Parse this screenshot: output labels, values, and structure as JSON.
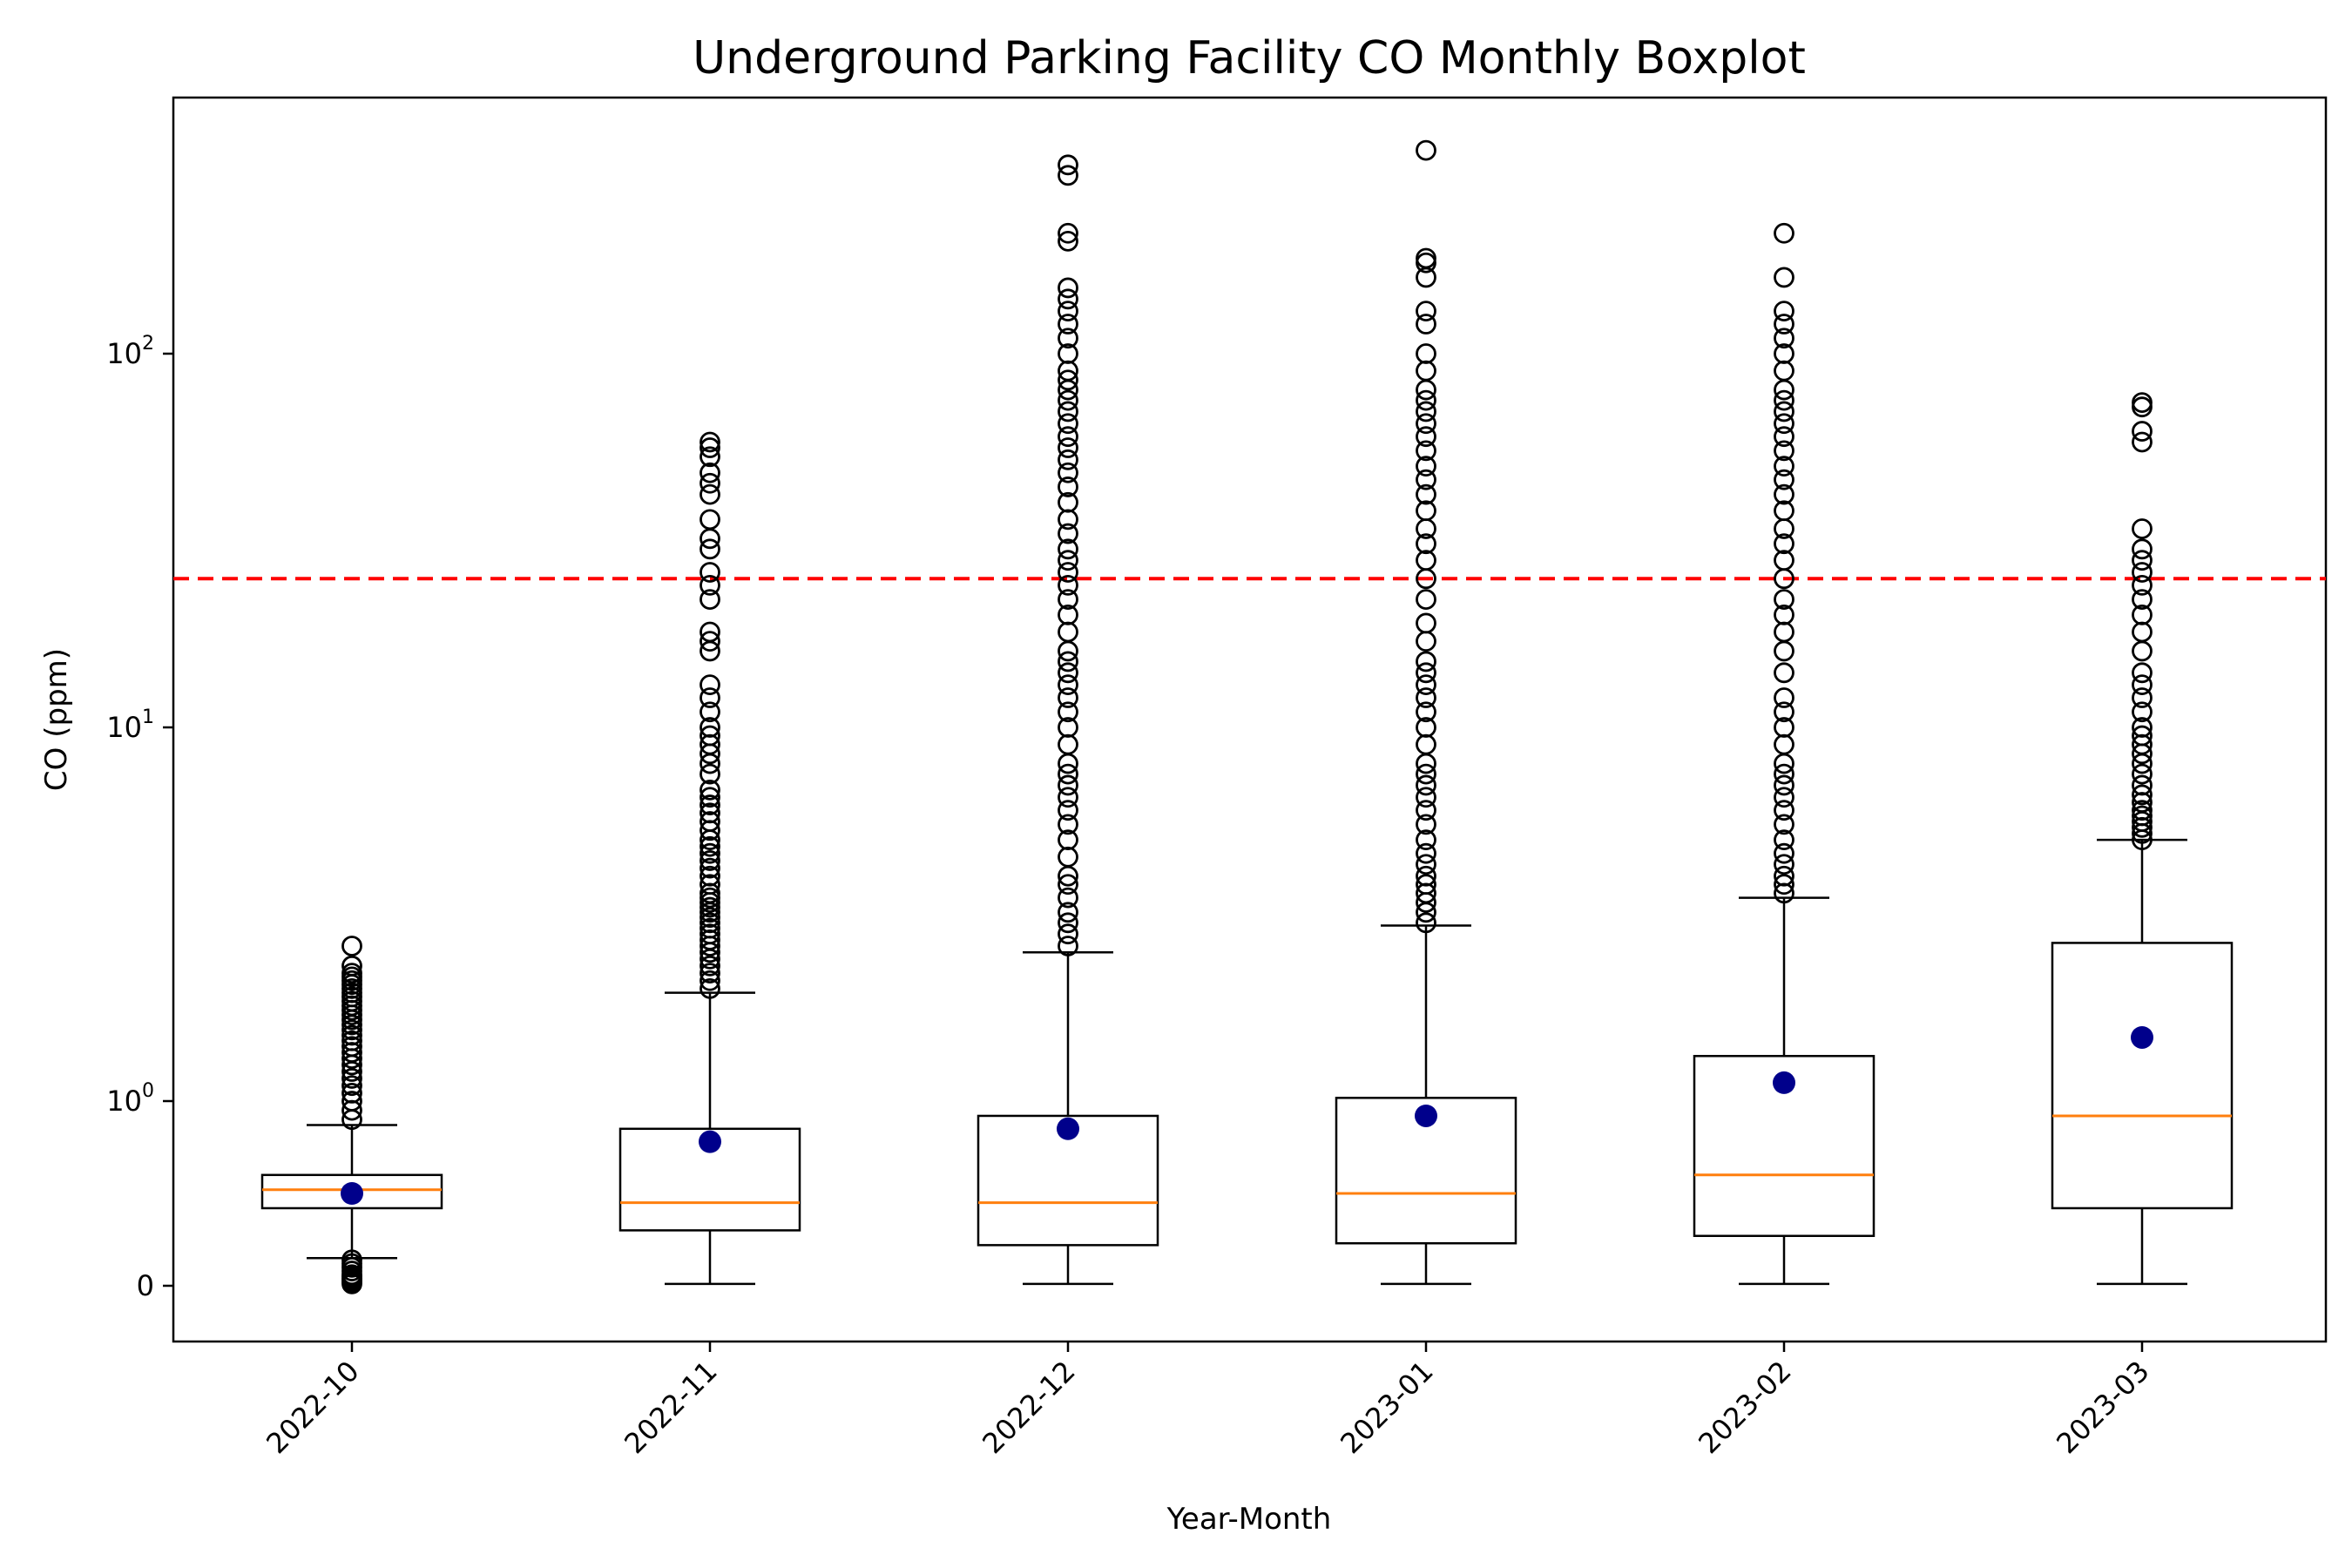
{
  "chart_data": {
    "type": "boxplot",
    "title": "Underground Parking Facility CO Monthly Boxplot",
    "xlabel": "Year-Month",
    "ylabel": "CO (ppm)",
    "yscale": "symlog",
    "symlog_linthresh": 1,
    "ylim": [
      -0.1,
      500
    ],
    "y_ticks": [
      {
        "value": 0,
        "base": "0",
        "exp": ""
      },
      {
        "value": 1,
        "base": "10",
        "exp": "0"
      },
      {
        "value": 10,
        "base": "10",
        "exp": "1"
      },
      {
        "value": 100,
        "base": "10",
        "exp": "2"
      }
    ],
    "threshold_line": {
      "value": 25,
      "color": "#ff0000",
      "style": "dashed"
    },
    "colors": {
      "box": "#000000",
      "median": "#ff7f0e",
      "mean": "#00008b",
      "flier": "#000000"
    },
    "categories": [
      "2022-10",
      "2022-11",
      "2022-12",
      "2023-01",
      "2023-02",
      "2023-03"
    ],
    "boxes": [
      {
        "category": "2022-10",
        "whisker_low": 0.15,
        "q1": 0.42,
        "median": 0.52,
        "q3": 0.6,
        "whisker_high": 0.87,
        "mean": 0.5,
        "fliers_high": [
          0.9,
          0.95,
          1.0,
          1.05,
          1.1,
          1.15,
          1.2,
          1.25,
          1.3,
          1.35,
          1.4,
          1.45,
          1.5,
          1.55,
          1.6,
          1.65,
          1.7,
          1.75,
          1.8,
          1.85,
          1.9,
          1.95,
          2.0,
          2.05,
          2.1,
          2.15,
          2.2,
          2.3,
          2.6
        ],
        "fliers_low": [
          0.01,
          0.02,
          0.03,
          0.04,
          0.05,
          0.06,
          0.08,
          0.1,
          0.12,
          0.14
        ]
      },
      {
        "category": "2022-11",
        "whisker_low": 0.01,
        "q1": 0.3,
        "median": 0.45,
        "q3": 0.85,
        "whisker_high": 1.95,
        "mean": 0.78,
        "fliers_high": [
          2.0,
          2.1,
          2.2,
          2.3,
          2.4,
          2.5,
          2.6,
          2.7,
          2.8,
          2.9,
          3.0,
          3.1,
          3.2,
          3.3,
          3.4,
          3.5,
          3.6,
          3.8,
          4.0,
          4.2,
          4.4,
          4.6,
          4.8,
          5.0,
          5.3,
          5.6,
          5.9,
          6.2,
          6.5,
          6.8,
          7.5,
          8.0,
          8.5,
          9.0,
          9.5,
          10.0,
          11.0,
          12.0,
          13.0,
          16.0,
          17.0,
          18.0,
          22.0,
          24.0,
          26.0,
          30.0,
          32.0,
          36.0,
          42.0,
          45.0,
          48.0,
          53.0,
          56.0,
          58.0
        ],
        "fliers_low": []
      },
      {
        "category": "2022-12",
        "whisker_low": 0.01,
        "q1": 0.22,
        "median": 0.45,
        "q3": 0.92,
        "whisker_high": 2.5,
        "mean": 0.85,
        "fliers_high": [
          2.6,
          2.8,
          3.0,
          3.2,
          3.5,
          3.8,
          4.0,
          4.5,
          5.0,
          5.5,
          6.0,
          6.5,
          7.0,
          7.5,
          8.0,
          9.0,
          10.0,
          11.0,
          12.0,
          13.0,
          14.0,
          15.0,
          16.0,
          18.0,
          20.0,
          22.0,
          24.0,
          26.0,
          28.0,
          30.0,
          33.0,
          36.0,
          40.0,
          44.0,
          48.0,
          52.0,
          56.0,
          60.0,
          65.0,
          70.0,
          75.0,
          80.0,
          85.0,
          90.0,
          100.0,
          110.0,
          120.0,
          130.0,
          140.0,
          150.0,
          200.0,
          210.0,
          300.0,
          320.0
        ],
        "fliers_low": []
      },
      {
        "category": "2023-01",
        "whisker_low": 0.01,
        "q1": 0.23,
        "median": 0.5,
        "q3": 1.02,
        "whisker_high": 2.95,
        "mean": 0.92,
        "fliers_high": [
          3.0,
          3.2,
          3.4,
          3.6,
          3.8,
          4.0,
          4.3,
          4.6,
          5.0,
          5.5,
          6.0,
          6.5,
          7.0,
          7.5,
          8.0,
          9.0,
          10.0,
          11.0,
          12.0,
          13.0,
          14.0,
          15.0,
          17.0,
          19.0,
          22.0,
          25.0,
          28.0,
          31.0,
          34.0,
          38.0,
          42.0,
          46.0,
          50.0,
          55.0,
          60.0,
          65.0,
          70.0,
          75.0,
          80.0,
          90.0,
          100.0,
          120.0,
          130.0,
          160.0,
          175.0,
          180.0,
          350.0
        ],
        "fliers_low": []
      },
      {
        "category": "2023-02",
        "whisker_low": 0.01,
        "q1": 0.27,
        "median": 0.6,
        "q3": 1.32,
        "whisker_high": 3.5,
        "mean": 1.12,
        "fliers_high": [
          3.6,
          3.8,
          4.0,
          4.3,
          4.6,
          5.0,
          5.5,
          6.0,
          6.5,
          7.0,
          7.5,
          8.0,
          9.0,
          10.0,
          11.0,
          12.0,
          14.0,
          16.0,
          18.0,
          20.0,
          22.0,
          25.0,
          28.0,
          31.0,
          34.0,
          38.0,
          42.0,
          46.0,
          50.0,
          55.0,
          60.0,
          65.0,
          70.0,
          75.0,
          80.0,
          90.0,
          100.0,
          110.0,
          120.0,
          130.0,
          160.0,
          210.0
        ],
        "fliers_low": []
      },
      {
        "category": "2023-03",
        "whisker_low": 0.01,
        "q1": 0.42,
        "median": 0.92,
        "q3": 2.65,
        "whisker_high": 5.0,
        "mean": 1.48,
        "fliers_high": [
          5.0,
          5.2,
          5.4,
          5.6,
          5.8,
          6.0,
          6.3,
          6.6,
          7.0,
          7.5,
          8.0,
          8.5,
          9.0,
          9.5,
          10.0,
          11.0,
          12.0,
          13.0,
          14.0,
          16.0,
          18.0,
          20.0,
          22.0,
          24.0,
          26.0,
          28.0,
          30.0,
          34.0,
          58.0,
          62.0,
          72.0,
          74.0
        ],
        "fliers_low": []
      }
    ]
  }
}
